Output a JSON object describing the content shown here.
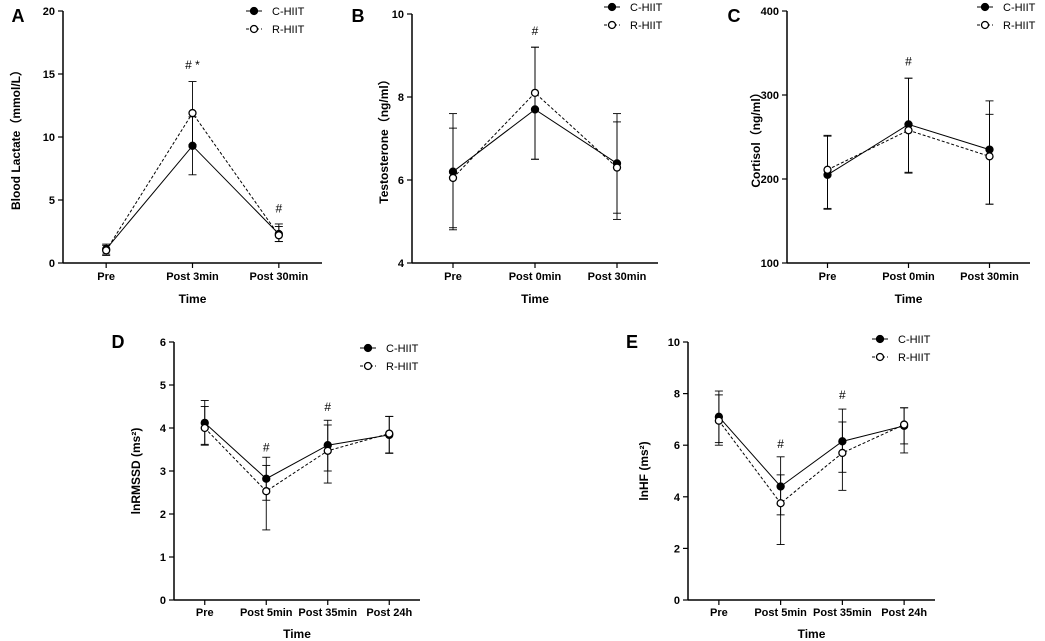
{
  "chart_data": [
    {
      "panel": "A",
      "type": "line",
      "categories": [
        "Pre",
        "Post 3min",
        "Post 30min"
      ],
      "xlabel": "Time",
      "ylabel": "Blood Lactate（mmol/L）",
      "ylim": [
        0,
        20
      ],
      "yticks": [
        "0",
        "5",
        "10",
        "15",
        "20"
      ],
      "series": [
        {
          "name": "C-HIIT",
          "marker": "filled",
          "line": "solid",
          "values": [
            1.1,
            9.3,
            2.3
          ],
          "err_up": [
            0.4,
            2.3,
            0.8
          ],
          "err_dn": [
            0.4,
            2.3,
            0.6
          ]
        },
        {
          "name": "R-HIIT",
          "marker": "open",
          "line": "dashed",
          "values": [
            1.0,
            11.9,
            2.2
          ],
          "err_up": [
            0.4,
            2.5,
            0.7
          ],
          "err_dn": [
            0.4,
            2.5,
            0.5
          ]
        }
      ],
      "annotations": [
        {
          "x": "Post 3min",
          "text": "# *",
          "y": 15.4
        },
        {
          "x": "Post 30min",
          "text": "#",
          "y": 4.0
        }
      ],
      "legend": "top-right"
    },
    {
      "panel": "B",
      "type": "line",
      "categories": [
        "Pre",
        "Post 0min",
        "Post 30min"
      ],
      "xlabel": "Time",
      "ylabel": "Testosterone（ng/ml）",
      "ylim": [
        4,
        10
      ],
      "yticks": [
        "4",
        "6",
        "8",
        "10"
      ],
      "series": [
        {
          "name": "C-HIIT",
          "marker": "filled",
          "line": "solid",
          "values": [
            6.2,
            7.7,
            6.4
          ],
          "err_up": [
            1.4,
            1.5,
            1.2
          ],
          "err_dn": [
            1.4,
            1.2,
            1.2
          ]
        },
        {
          "name": "R-HIIT",
          "marker": "open",
          "line": "dashed",
          "values": [
            6.05,
            8.1,
            6.3
          ],
          "err_up": [
            1.2,
            1.1,
            1.1
          ],
          "err_dn": [
            1.2,
            1.6,
            1.25
          ]
        }
      ],
      "annotations": [
        {
          "x": "Post 0min",
          "text": "#",
          "y": 9.5
        }
      ],
      "legend": "top-right"
    },
    {
      "panel": "C",
      "type": "line",
      "categories": [
        "Pre",
        "Post 0min",
        "Post 30min"
      ],
      "xlabel": "Time",
      "ylabel": "Cortisol（ng/ml）",
      "ylim": [
        100,
        400
      ],
      "yticks": [
        "100",
        "200",
        "300",
        "400"
      ],
      "series": [
        {
          "name": "C-HIIT",
          "marker": "filled",
          "line": "solid",
          "values": [
            205,
            265,
            235
          ],
          "err_up": [
            47,
            55,
            58
          ],
          "err_dn": [
            40,
            58,
            65
          ]
        },
        {
          "name": "R-HIIT",
          "marker": "open",
          "line": "dashed",
          "values": [
            211,
            258,
            227
          ],
          "err_up": [
            40,
            62,
            50
          ],
          "err_dn": [
            47,
            50,
            57
          ]
        }
      ],
      "annotations": [
        {
          "x": "Post 0min",
          "text": "#",
          "y": 335
        }
      ],
      "legend": "top-right"
    },
    {
      "panel": "D",
      "type": "line",
      "categories": [
        "Pre",
        "Post 5min",
        "Post 35min",
        "Post 24h"
      ],
      "xlabel": "Time",
      "ylabel": "lnRMSSD (ms²)",
      "ylim": [
        0,
        6
      ],
      "yticks": [
        "0",
        "1",
        "2",
        "3",
        "4",
        "5",
        "6"
      ],
      "series": [
        {
          "name": "C-HIIT",
          "marker": "filled",
          "line": "solid",
          "values": [
            4.12,
            2.82,
            3.6,
            3.84
          ],
          "err_up": [
            0.52,
            0.5,
            0.58,
            0.43
          ],
          "err_dn": [
            0.5,
            0.5,
            0.6,
            0.43
          ]
        },
        {
          "name": "R-HIIT",
          "marker": "open",
          "line": "dashed",
          "values": [
            4.0,
            2.53,
            3.47,
            3.87
          ],
          "err_up": [
            0.5,
            0.6,
            0.6,
            0.4
          ],
          "err_dn": [
            0.4,
            0.9,
            0.75,
            0.45
          ]
        }
      ],
      "annotations": [
        {
          "x": "Post 5min",
          "text": "#",
          "y": 3.45
        },
        {
          "x": "Post 35min",
          "text": "#",
          "y": 4.4
        }
      ],
      "legend": "top-right"
    },
    {
      "panel": "E",
      "type": "line",
      "categories": [
        "Pre",
        "Post 5min",
        "Post 35min",
        "Post 24h"
      ],
      "xlabel": "Time",
      "ylabel": "lnHF (ms²)",
      "ylim": [
        0,
        10
      ],
      "yticks": [
        "0",
        "2",
        "4",
        "6",
        "8",
        "10"
      ],
      "series": [
        {
          "name": "C-HIIT",
          "marker": "filled",
          "line": "solid",
          "values": [
            7.1,
            4.4,
            6.15,
            6.75
          ],
          "err_up": [
            1.0,
            1.15,
            1.25,
            0.7
          ],
          "err_dn": [
            1.0,
            1.1,
            1.2,
            0.7
          ]
        },
        {
          "name": "R-HIIT",
          "marker": "open",
          "line": "dashed",
          "values": [
            6.95,
            3.75,
            5.7,
            6.8
          ],
          "err_up": [
            1.0,
            1.1,
            1.2,
            0.65
          ],
          "err_dn": [
            0.95,
            1.6,
            1.45,
            1.1
          ]
        }
      ],
      "annotations": [
        {
          "x": "Post 5min",
          "text": "#",
          "y": 5.9
        },
        {
          "x": "Post 35min",
          "text": "#",
          "y": 7.8
        }
      ],
      "legend": "top-right"
    }
  ]
}
